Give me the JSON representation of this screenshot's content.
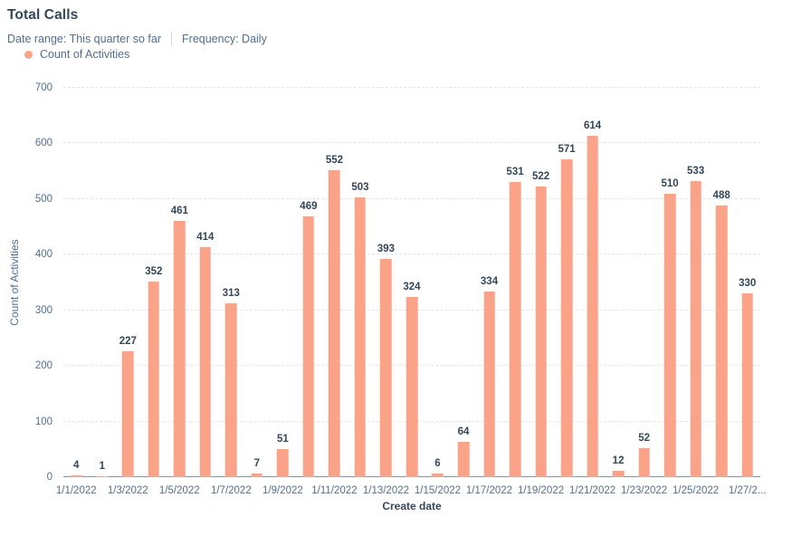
{
  "header": {
    "title": "Total Calls",
    "date_range_label": "Date range:",
    "date_range_value": "This quarter so far",
    "frequency_label": "Frequency:",
    "frequency_value": "Daily"
  },
  "legend": {
    "series_label": "Count of Activities",
    "dot_color": "#fba389"
  },
  "chart_data": {
    "type": "bar",
    "title": "Total Calls",
    "xlabel": "Create date",
    "ylabel": "Count of Activities",
    "ylim": [
      0,
      700
    ],
    "y_ticks": [
      0,
      100,
      200,
      300,
      400,
      500,
      600,
      700
    ],
    "grid": "horizontal-dashed",
    "legend_position": "top-left",
    "bar_color": "#fba389",
    "label_color": "#33475b",
    "axis_text_color": "#516f90",
    "categories": [
      "1/1/2022",
      "1/2/2022",
      "1/3/2022",
      "1/4/2022",
      "1/5/2022",
      "1/6/2022",
      "1/7/2022",
      "1/8/2022",
      "1/9/2022",
      "1/10/2022",
      "1/11/2022",
      "1/12/2022",
      "1/13/2022",
      "1/14/2022",
      "1/15/2022",
      "1/16/2022",
      "1/17/2022",
      "1/18/2022",
      "1/19/2022",
      "1/20/2022",
      "1/21/2022",
      "1/22/2022",
      "1/23/2022",
      "1/24/2022",
      "1/25/2022",
      "1/26/2022",
      "1/27/2022"
    ],
    "values": [
      4,
      1,
      227,
      352,
      461,
      414,
      313,
      7,
      51,
      469,
      552,
      503,
      393,
      324,
      6,
      64,
      334,
      531,
      522,
      571,
      614,
      12,
      52,
      510,
      533,
      488,
      330
    ],
    "x_tick_display": [
      "1/1/2022",
      "1/3/2022",
      "1/5/2022",
      "1/7/2022",
      "1/9/2022",
      "1/11/2022",
      "1/13/2022",
      "1/15/2022",
      "1/17/2022",
      "1/19/2022",
      "1/21/2022",
      "1/23/2022",
      "1/25/2022",
      "1/27/2..."
    ]
  }
}
